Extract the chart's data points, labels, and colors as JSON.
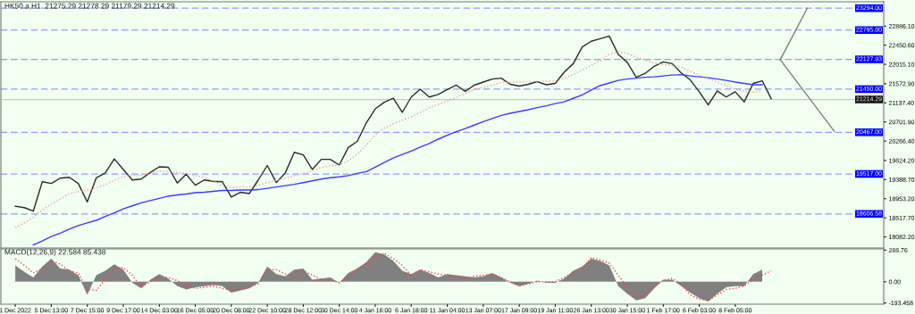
{
  "chart_data": [
    {
      "type": "line",
      "title": "HK50.a,H1  21275.29 21278.29 21179.29 21214.29",
      "tick_labels": "y",
      "categories": [
        null,
        null,
        null,
        null,
        null,
        null,
        null,
        null,
        null,
        null,
        null,
        null,
        null,
        null,
        null,
        null,
        null,
        null,
        null,
        null,
        null,
        null,
        null,
        null,
        null,
        null,
        null,
        null,
        null,
        null,
        null,
        null,
        null,
        null,
        null,
        null,
        null,
        null,
        null,
        null,
        null,
        null,
        null,
        null,
        null,
        null,
        null,
        null,
        null,
        null,
        null,
        null,
        null,
        null,
        null,
        null,
        null,
        null,
        null,
        null,
        null,
        null,
        null,
        null,
        null,
        null,
        null,
        null,
        null,
        null,
        null,
        null,
        null,
        null,
        null,
        null,
        null,
        null,
        null,
        null,
        null,
        null,
        null,
        null,
        null,
        null,
        null,
        null,
        null,
        null,
        null,
        null,
        null,
        null,
        null,
        null,
        null
      ],
      "ylim": [
        17830,
        23440
      ],
      "yticks": [
        {
          "value": 22886.1,
          "label": "22886.10"
        },
        {
          "value": 22450.6,
          "label": "22450.60"
        },
        {
          "value": 22015.1,
          "label": "22015.10"
        },
        {
          "value": 21572.9,
          "label": "21572.90"
        },
        {
          "value": 21137.4,
          "label": "21137.40"
        },
        {
          "value": 20701.9,
          "label": "20701.90"
        },
        {
          "value": 20266.4,
          "label": "20266.40"
        },
        {
          "value": 19824.2,
          "label": "19824.20"
        },
        {
          "value": 19388.7,
          "label": "19388.70"
        },
        {
          "value": 18953.2,
          "label": "18953.20"
        },
        {
          "value": 18517.7,
          "label": "18517.70"
        },
        {
          "value": 18082.2,
          "label": "18082.20"
        }
      ],
      "ref_lines": [
        {
          "axis": "y",
          "value": 23294,
          "label": "23294.00",
          "color": "#9999ff",
          "line_style": "dashed"
        },
        {
          "axis": "y",
          "value": 22795,
          "label": "22795.00",
          "color": "#9999ff",
          "line_style": "dashed"
        },
        {
          "axis": "y",
          "value": 22127.93,
          "label": "22127.93",
          "color": "#9999ff",
          "line_style": "dashed"
        },
        {
          "axis": "y",
          "value": 21450,
          "label": "21450.00",
          "color": "#9999ff",
          "line_style": "dashed"
        },
        {
          "axis": "y",
          "value": 20467,
          "label": "20467.00",
          "color": "#9999ff",
          "line_style": "dashed"
        },
        {
          "axis": "y",
          "value": 19517,
          "label": "19517.00",
          "color": "#9999ff",
          "line_style": "dashed"
        },
        {
          "axis": "y",
          "value": 18606.58,
          "label": "18606.58",
          "color": "#9999ff",
          "line_style": "dashed"
        },
        {
          "axis": "y",
          "value": 21214.29,
          "label": "21214.29",
          "color": "#c8c8c8",
          "line_style": "solid"
        }
      ],
      "series": [
        {
          "color": "#2b2b2b",
          "line_style": "solid",
          "values": [
            18780,
            18750,
            18670,
            19340,
            19300,
            19420,
            19440,
            19300,
            18880,
            19430,
            19540,
            19860,
            19620,
            19380,
            19400,
            19550,
            19680,
            19670,
            19310,
            19510,
            19260,
            19380,
            19350,
            19340,
            18990,
            19100,
            19070,
            19380,
            19710,
            19320,
            19540,
            20010,
            19950,
            19620,
            19850,
            19850,
            19720,
            20120,
            20260,
            20680,
            21000,
            21150,
            21240,
            20920,
            21270,
            21450,
            21270,
            21330,
            21440,
            21540,
            21400,
            21540,
            21610,
            21680,
            21700,
            21560,
            21520,
            21560,
            21620,
            21550,
            21580,
            21840,
            22030,
            22410,
            22540,
            22600,
            22660,
            22240,
            22060,
            21720,
            21810,
            21970,
            22070,
            22030,
            21820,
            21660,
            21390,
            21090,
            21410,
            21270,
            21390,
            21160,
            21580,
            21640,
            21230,
            null,
            null,
            null,
            null,
            null,
            null,
            null,
            null,
            null,
            null,
            null,
            null
          ]
        },
        {
          "color": "#3b3bff",
          "line_style": "solid",
          "values": [
            null,
            null,
            17900,
            17990,
            18090,
            18170,
            18260,
            18340,
            18400,
            18460,
            18550,
            18630,
            18720,
            18790,
            18860,
            18910,
            18960,
            19010,
            19040,
            19060,
            19090,
            19100,
            19120,
            19140,
            19140,
            19150,
            19150,
            19160,
            19190,
            19220,
            19250,
            19280,
            19320,
            19360,
            19400,
            19430,
            19450,
            19480,
            19530,
            19570,
            19670,
            19780,
            19880,
            19960,
            20040,
            20130,
            20210,
            20310,
            20400,
            20480,
            20550,
            20630,
            20710,
            20780,
            20850,
            20900,
            20940,
            20980,
            21030,
            21070,
            21120,
            21160,
            21240,
            21320,
            21430,
            21530,
            21590,
            21650,
            21680,
            21700,
            21720,
            21730,
            21750,
            21770,
            21780,
            21750,
            21730,
            21710,
            21680,
            21650,
            21610,
            21580,
            21550,
            21550,
            null,
            null,
            null,
            null,
            null,
            null,
            null,
            null,
            null,
            null,
            null,
            null,
            null
          ]
        },
        {
          "color": "#f4a090",
          "line_style": "dotted",
          "values": [
            18300,
            18400,
            18530,
            18690,
            18830,
            18950,
            19070,
            19110,
            19140,
            19200,
            19270,
            19370,
            19460,
            19480,
            19490,
            19530,
            19580,
            19570,
            19550,
            19530,
            19480,
            19440,
            19350,
            19250,
            19210,
            19220,
            19220,
            19260,
            19320,
            19370,
            19420,
            19480,
            19530,
            19590,
            19660,
            19710,
            19710,
            19820,
            19970,
            20170,
            20400,
            20560,
            20660,
            20740,
            20820,
            20920,
            21030,
            21100,
            21180,
            21260,
            21350,
            21440,
            21490,
            21540,
            21600,
            21600,
            21610,
            21620,
            21620,
            21630,
            21630,
            21700,
            21780,
            21890,
            21990,
            22100,
            22240,
            22300,
            22260,
            22180,
            22110,
            22040,
            22010,
            21990,
            21950,
            21860,
            21770,
            21690,
            21610,
            21530,
            21450,
            21400,
            21380,
            21410,
            null,
            null,
            null,
            null,
            null,
            null,
            null,
            null,
            null,
            null,
            null,
            null,
            null
          ]
        },
        {
          "color": "#808080",
          "line_style": "solid",
          "values": [
            null,
            null,
            null,
            null,
            null,
            null,
            null,
            null,
            null,
            null,
            null,
            null,
            null,
            null,
            null,
            null,
            null,
            null,
            null,
            null,
            null,
            null,
            null,
            null,
            null,
            null,
            null,
            null,
            null,
            null,
            null,
            null,
            null,
            null,
            null,
            null,
            null,
            null,
            null,
            null,
            null,
            null,
            null,
            null,
            null,
            null,
            null,
            null,
            null,
            null,
            null,
            null,
            null,
            null,
            null,
            null,
            null,
            null,
            null,
            null,
            null,
            null,
            null,
            null,
            null,
            null,
            null,
            null,
            null,
            null,
            null,
            null,
            null,
            null,
            null,
            null,
            null,
            null,
            null,
            null,
            null,
            null,
            null,
            null,
            null,
            22120,
            null,
            null,
            23290,
            null,
            null,
            null,
            null,
            null,
            null,
            null,
            null
          ]
        },
        {
          "color": "#808080",
          "line_style": "solid",
          "values": [
            null,
            null,
            null,
            null,
            null,
            null,
            null,
            null,
            null,
            null,
            null,
            null,
            null,
            null,
            null,
            null,
            null,
            null,
            null,
            null,
            null,
            null,
            null,
            null,
            null,
            null,
            null,
            null,
            null,
            null,
            null,
            null,
            null,
            null,
            null,
            null,
            null,
            null,
            null,
            null,
            null,
            null,
            null,
            null,
            null,
            null,
            null,
            null,
            null,
            null,
            null,
            null,
            null,
            null,
            null,
            null,
            null,
            null,
            null,
            null,
            null,
            null,
            null,
            null,
            null,
            null,
            null,
            null,
            null,
            null,
            null,
            null,
            null,
            null,
            null,
            null,
            null,
            null,
            null,
            null,
            null,
            null,
            null,
            null,
            null,
            22120,
            null,
            null,
            null,
            null,
            null,
            20490,
            null,
            null,
            null,
            null,
            null
          ]
        }
      ]
    },
    {
      "type": "area",
      "title": "MACD(12,26,9) 22.584 85.438",
      "categories": [
        "1 Dec 2022",
        null,
        null,
        null,
        "5 Dec 13:00",
        null,
        null,
        null,
        "7 Dec 15:00",
        null,
        null,
        null,
        "9 Dec 17:00",
        null,
        null,
        null,
        "14 Dec 03:00",
        null,
        null,
        null,
        "16 Dec 05:00",
        null,
        null,
        null,
        "20 Dec 08:00",
        null,
        null,
        null,
        "22 Dec 10:00",
        null,
        null,
        null,
        "28 Dec 12:00",
        null,
        null,
        null,
        "30 Dec 14:00",
        null,
        null,
        null,
        "4 Jan 16:00",
        null,
        null,
        null,
        "6 Jan 18:00",
        null,
        null,
        null,
        "11 Jan 04:00",
        null,
        null,
        null,
        "13 Jan 07:00",
        null,
        null,
        null,
        "17 Jan 09:00",
        null,
        null,
        null,
        "19 Jan 11:00",
        null,
        null,
        null,
        "26 Jan 13:00",
        null,
        null,
        null,
        "30 Jan 15:00",
        null,
        null,
        null,
        "1 Feb 17:00",
        null,
        null,
        null,
        "6 Feb 03:00",
        null,
        null,
        null,
        "8 Feb 05:00",
        null,
        null,
        null,
        null,
        null,
        null,
        null,
        null,
        null,
        null,
        null,
        null,
        null,
        null,
        null,
        null
      ],
      "ylim": [
        -205,
        300
      ],
      "yticks": [
        288.76,
        {
          "value": 0,
          "label": "0.00"
        },
        {
          "value": -193.458,
          "label": "-193.458"
        }
      ],
      "series": [
        {
          "type": "area",
          "color": "#808080",
          "values": [
            150,
            90,
            40,
            140,
            210,
            120,
            110,
            60,
            -120,
            60,
            100,
            160,
            110,
            -10,
            -60,
            20,
            70,
            30,
            -40,
            -70,
            -50,
            -40,
            -30,
            -40,
            -100,
            -80,
            -60,
            -10,
            140,
            70,
            50,
            110,
            120,
            20,
            30,
            40,
            -10,
            80,
            120,
            180,
            270,
            250,
            190,
            100,
            70,
            110,
            80,
            40,
            70,
            60,
            50,
            40,
            50,
            80,
            40,
            -10,
            -40,
            -20,
            10,
            -10,
            -10,
            30,
            100,
            140,
            210,
            190,
            150,
            -40,
            -110,
            -170,
            -150,
            -60,
            20,
            20,
            -40,
            -100,
            -150,
            -180,
            -110,
            -50,
            -40,
            -40,
            70,
            110,
            null,
            null,
            null,
            null,
            null,
            null,
            null,
            null,
            null,
            null,
            null,
            null,
            null
          ]
        },
        {
          "type": "line",
          "color": "#ff4040",
          "line_style": "dotted",
          "values": [
            210,
            150,
            80,
            120,
            190,
            160,
            100,
            80,
            -70,
            -80,
            20,
            120,
            130,
            60,
            -50,
            0,
            40,
            40,
            10,
            -30,
            -60,
            -50,
            -40,
            -60,
            -80,
            -70,
            -50,
            -20,
            110,
            110,
            70,
            40,
            100,
            60,
            20,
            20,
            -10,
            50,
            120,
            160,
            230,
            260,
            210,
            150,
            60,
            110,
            90,
            70,
            60,
            50,
            30,
            50,
            60,
            70,
            40,
            0,
            -40,
            -20,
            0,
            0,
            0,
            40,
            80,
            120,
            220,
            200,
            170,
            60,
            -50,
            -150,
            -120,
            -40,
            10,
            30,
            -20,
            -120,
            -160,
            -170,
            -120,
            -70,
            -60,
            -40,
            20,
            60,
            100,
            null,
            null,
            null,
            null,
            null,
            null,
            null,
            null,
            null,
            null,
            null,
            null
          ]
        }
      ]
    }
  ]
}
